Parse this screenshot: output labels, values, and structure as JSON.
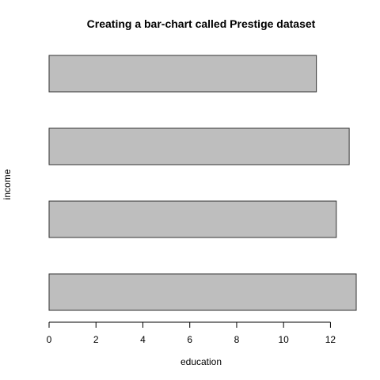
{
  "chart_data": {
    "type": "bar",
    "orientation": "horizontal",
    "title": "Creating a bar-chart called Prestige dataset",
    "xlabel": "education",
    "ylabel": "income",
    "values": [
      13.1,
      12.25,
      12.8,
      11.4
    ],
    "xlim": [
      0,
      13.1
    ],
    "x_ticks": [
      0,
      2,
      4,
      6,
      8,
      10,
      12
    ],
    "grid": false,
    "bar_color": "#bebebe",
    "bar_border_color": "#333333"
  }
}
